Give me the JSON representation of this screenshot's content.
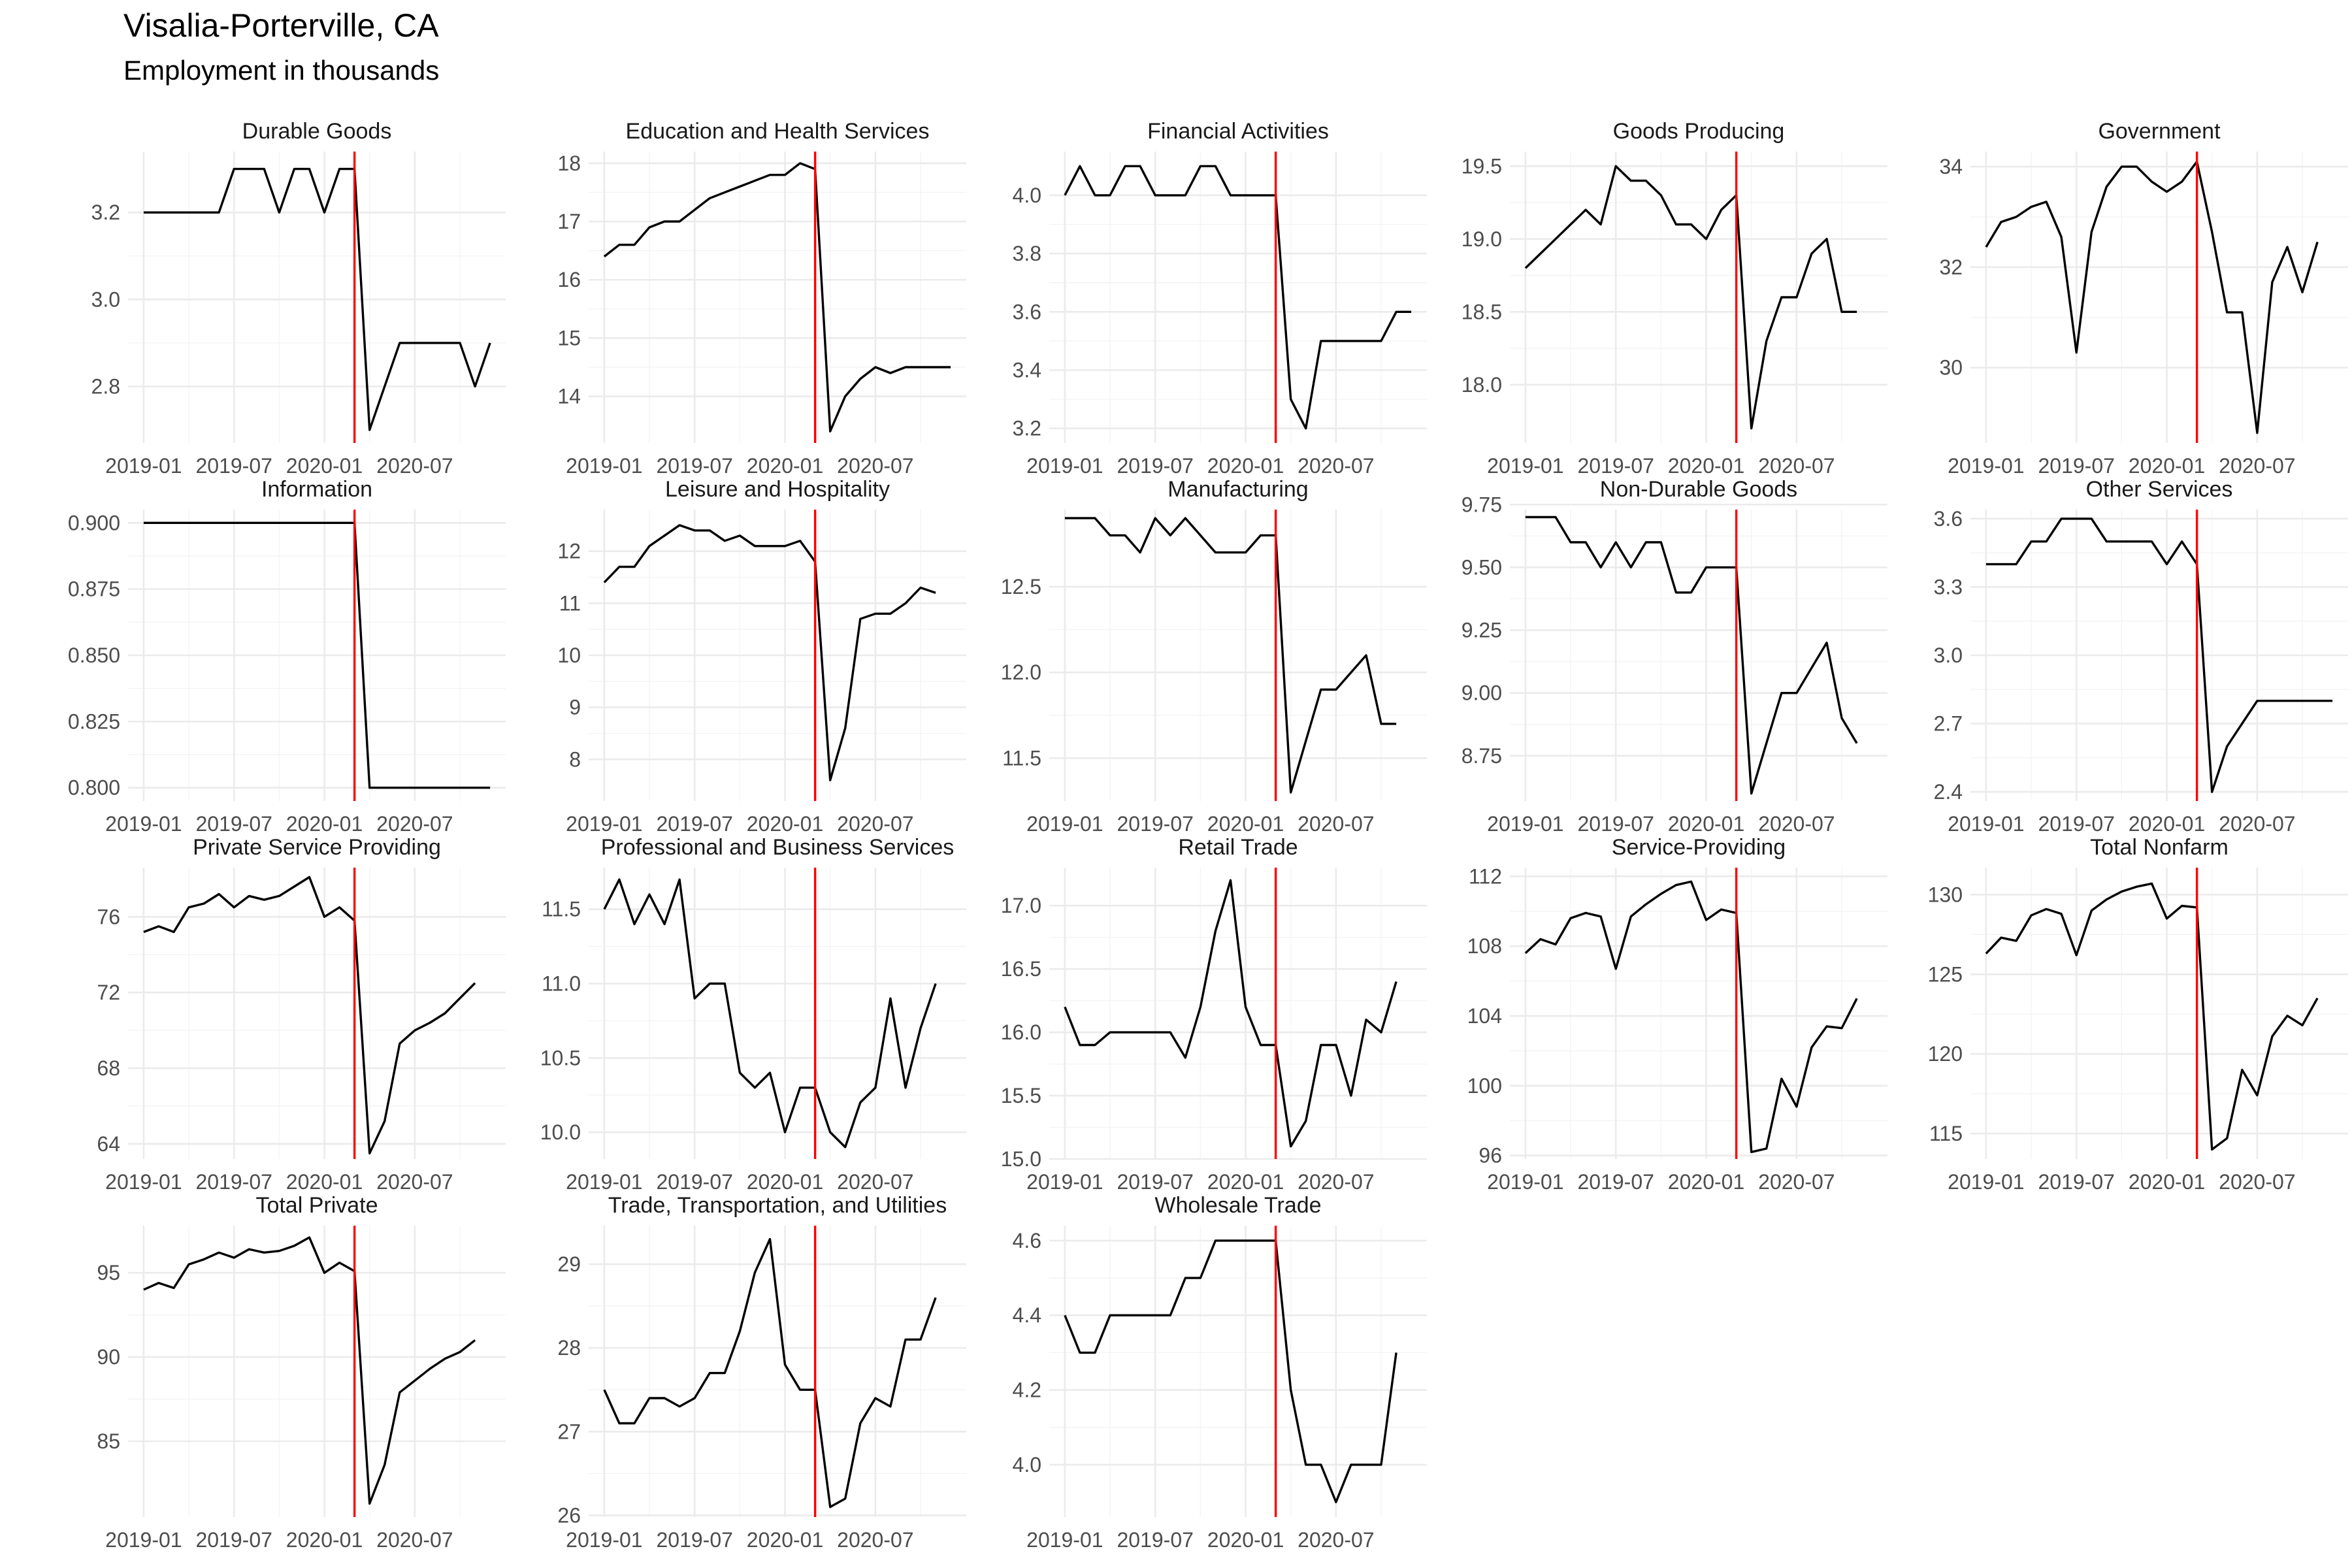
{
  "header": {
    "title": "Visalia-Porterville, CA",
    "subtitle": "Employment in thousands"
  },
  "chart_data": {
    "type": "line",
    "facet": "wrap",
    "facet_columns": 5,
    "x": [
      "2019-01",
      "2019-02",
      "2019-03",
      "2019-04",
      "2019-05",
      "2019-06",
      "2019-07",
      "2019-08",
      "2019-09",
      "2019-10",
      "2019-11",
      "2019-12",
      "2020-01",
      "2020-02",
      "2020-03",
      "2020-04",
      "2020-05",
      "2020-06",
      "2020-07",
      "2020-08",
      "2020-09",
      "2020-10",
      "2020-11",
      "2020-12"
    ],
    "x_tick_labels": [
      "2019-01",
      "2019-07",
      "2020-01",
      "2020-07"
    ],
    "vline": {
      "x": "2020-03",
      "color": "#ff0000"
    },
    "line_color": "#000000",
    "grid": true,
    "panels": [
      {
        "title": "Durable Goods",
        "ylim": [
          2.67,
          3.34
        ],
        "yticks": [
          "2.8",
          "3.0",
          "3.2"
        ],
        "values": [
          3.2,
          3.2,
          3.2,
          3.2,
          3.2,
          3.2,
          3.3,
          3.3,
          3.3,
          3.2,
          3.3,
          3.3,
          3.2,
          3.3,
          3.3,
          2.7,
          2.8,
          2.9,
          2.9,
          2.9,
          2.9,
          2.9,
          2.8,
          2.9
        ]
      },
      {
        "title": "Education and Health Services",
        "ylim": [
          13.2,
          18.2
        ],
        "yticks": [
          "14",
          "15",
          "16",
          "17",
          "18"
        ],
        "values": [
          16.4,
          16.6,
          16.6,
          16.9,
          17.0,
          17.0,
          17.2,
          17.4,
          17.5,
          17.6,
          17.7,
          17.8,
          17.8,
          18.0,
          17.9,
          13.4,
          14.0,
          14.3,
          14.5,
          14.4,
          14.5,
          14.5,
          14.5,
          14.5
        ]
      },
      {
        "title": "Financial Activities",
        "ylim": [
          3.15,
          4.15
        ],
        "yticks": [
          "3.2",
          "3.4",
          "3.6",
          "3.8",
          "4.0"
        ],
        "values": [
          4.0,
          4.1,
          4.0,
          4.0,
          4.1,
          4.1,
          4.0,
          4.0,
          4.0,
          4.1,
          4.1,
          4.0,
          4.0,
          4.0,
          4.0,
          3.3,
          3.2,
          3.5,
          3.5,
          3.5,
          3.5,
          3.5,
          3.6,
          3.6
        ]
      },
      {
        "title": "Goods Producing",
        "ylim": [
          17.6,
          19.6
        ],
        "yticks": [
          "18.0",
          "18.5",
          "19.0",
          "19.5"
        ],
        "values": [
          18.8,
          18.9,
          19.0,
          19.1,
          19.2,
          19.1,
          19.5,
          19.4,
          19.4,
          19.3,
          19.1,
          19.1,
          19.0,
          19.2,
          19.3,
          17.7,
          18.3,
          18.6,
          18.6,
          18.9,
          19.0,
          18.5,
          18.5
        ]
      },
      {
        "title": "Government",
        "ylim": [
          28.5,
          34.3
        ],
        "yticks": [
          "30",
          "32",
          "34"
        ],
        "values": [
          32.4,
          32.9,
          33.0,
          33.2,
          33.3,
          32.6,
          30.3,
          32.7,
          33.6,
          34.0,
          34.0,
          33.7,
          33.5,
          33.7,
          34.1,
          32.7,
          31.1,
          31.1,
          28.7,
          31.7,
          32.4,
          31.5,
          32.5
        ]
      },
      {
        "title": "Information",
        "ylim": [
          0.795,
          0.905
        ],
        "yticks": [
          "0.800",
          "0.825",
          "0.850",
          "0.875",
          "0.900"
        ],
        "values": [
          0.9,
          0.9,
          0.9,
          0.9,
          0.9,
          0.9,
          0.9,
          0.9,
          0.9,
          0.9,
          0.9,
          0.9,
          0.9,
          0.9,
          0.9,
          0.8,
          0.8,
          0.8,
          0.8,
          0.8,
          0.8,
          0.8,
          0.8,
          0.8
        ]
      },
      {
        "title": "Leisure and Hospitality",
        "ylim": [
          7.2,
          12.8
        ],
        "yticks": [
          "8",
          "9",
          "10",
          "11",
          "12"
        ],
        "values": [
          11.4,
          11.7,
          11.7,
          12.1,
          12.3,
          12.5,
          12.4,
          12.4,
          12.2,
          12.3,
          12.1,
          12.1,
          12.1,
          12.2,
          11.8,
          7.6,
          8.6,
          10.7,
          10.8,
          10.8,
          11.0,
          11.3,
          11.2
        ]
      },
      {
        "title": "Manufacturing",
        "ylim": [
          11.25,
          12.95
        ],
        "yticks": [
          "11.5",
          "12.0",
          "12.5"
        ],
        "values": [
          12.9,
          12.9,
          12.9,
          12.8,
          12.8,
          12.7,
          12.9,
          12.8,
          12.9,
          12.8,
          12.7,
          12.7,
          12.7,
          12.8,
          12.8,
          11.3,
          11.6,
          11.9,
          11.9,
          12.0,
          12.1,
          11.7,
          11.7
        ]
      },
      {
        "title": "Non-Durable Goods",
        "ylim": [
          8.57,
          9.73
        ],
        "yticks": [
          "8.75",
          "9.00",
          "9.25",
          "9.50",
          "9.75"
        ],
        "values": [
          9.7,
          9.7,
          9.7,
          9.6,
          9.6,
          9.5,
          9.6,
          9.5,
          9.6,
          9.6,
          9.4,
          9.4,
          9.5,
          9.5,
          9.5,
          8.6,
          8.8,
          9.0,
          9.0,
          9.1,
          9.2,
          8.9,
          8.8
        ]
      },
      {
        "title": "Other Services",
        "ylim": [
          2.36,
          3.64
        ],
        "yticks": [
          "2.4",
          "2.7",
          "3.0",
          "3.3",
          "3.6"
        ],
        "values": [
          3.4,
          3.4,
          3.4,
          3.5,
          3.5,
          3.6,
          3.6,
          3.6,
          3.5,
          3.5,
          3.5,
          3.5,
          3.4,
          3.5,
          3.4,
          2.4,
          2.6,
          2.7,
          2.8,
          2.8,
          2.8,
          2.8,
          2.8,
          2.8
        ]
      },
      {
        "title": "Private Service Providing",
        "ylim": [
          63.2,
          78.6
        ],
        "yticks": [
          "64",
          "68",
          "72",
          "76"
        ],
        "values": [
          75.2,
          75.5,
          75.2,
          76.5,
          76.7,
          77.2,
          76.5,
          77.1,
          76.9,
          77.1,
          77.6,
          78.1,
          76.0,
          76.5,
          75.8,
          63.5,
          65.2,
          69.3,
          70.0,
          70.4,
          70.9,
          71.7,
          72.5
        ]
      },
      {
        "title": "Professional and Business Services",
        "ylim": [
          9.82,
          11.78
        ],
        "yticks": [
          "10.0",
          "10.5",
          "11.0",
          "11.5"
        ],
        "values": [
          11.5,
          11.7,
          11.4,
          11.6,
          11.4,
          11.7,
          10.9,
          11.0,
          11.0,
          10.4,
          10.3,
          10.4,
          10.0,
          10.3,
          10.3,
          10.0,
          9.9,
          10.2,
          10.3,
          10.9,
          10.3,
          10.7,
          11.0
        ]
      },
      {
        "title": "Retail Trade",
        "ylim": [
          15.0,
          17.3
        ],
        "yticks": [
          "15.0",
          "15.5",
          "16.0",
          "16.5",
          "17.0"
        ],
        "values": [
          16.2,
          15.9,
          15.9,
          16.0,
          16.0,
          16.0,
          16.0,
          16.0,
          15.8,
          16.2,
          16.8,
          17.2,
          16.2,
          15.9,
          15.9,
          15.1,
          15.3,
          15.9,
          15.9,
          15.5,
          16.1,
          16.0,
          16.4
        ]
      },
      {
        "title": "Service-Providing",
        "ylim": [
          95.8,
          112.5
        ],
        "yticks": [
          "96",
          "100",
          "104",
          "108",
          "112"
        ],
        "values": [
          107.6,
          108.4,
          108.1,
          109.6,
          109.9,
          109.7,
          106.7,
          109.7,
          110.4,
          111.0,
          111.5,
          111.7,
          109.5,
          110.1,
          109.9,
          96.2,
          96.4,
          100.4,
          98.8,
          102.2,
          103.4,
          103.3,
          105.0
        ]
      },
      {
        "title": "Total Nonfarm",
        "ylim": [
          113.4,
          131.7
        ],
        "yticks": [
          "115",
          "120",
          "125",
          "130"
        ],
        "values": [
          126.3,
          127.3,
          127.1,
          128.7,
          129.1,
          128.8,
          126.2,
          129.0,
          129.7,
          130.2,
          130.5,
          130.7,
          128.5,
          129.3,
          129.2,
          114.0,
          114.7,
          119.0,
          117.4,
          121.1,
          122.4,
          121.8,
          123.5
        ]
      },
      {
        "title": "Total Private",
        "ylim": [
          80.5,
          97.8
        ],
        "yticks": [
          "85",
          "90",
          "95"
        ],
        "values": [
          94.0,
          94.4,
          94.1,
          95.5,
          95.8,
          96.2,
          95.9,
          96.4,
          96.2,
          96.3,
          96.6,
          97.1,
          95.0,
          95.6,
          95.1,
          81.3,
          83.6,
          87.9,
          88.6,
          89.3,
          89.9,
          90.3,
          91.0
        ]
      },
      {
        "title": "Trade, Transportation, and Utilities",
        "ylim": [
          25.98,
          29.46
        ],
        "yticks": [
          "26",
          "27",
          "28",
          "29"
        ],
        "values": [
          27.5,
          27.1,
          27.1,
          27.4,
          27.4,
          27.3,
          27.4,
          27.7,
          27.7,
          28.2,
          28.9,
          29.3,
          27.8,
          27.5,
          27.5,
          26.1,
          26.2,
          27.1,
          27.4,
          27.3,
          28.1,
          28.1,
          28.6
        ]
      },
      {
        "title": "Wholesale Trade",
        "ylim": [
          3.86,
          4.64
        ],
        "yticks": [
          "4.0",
          "4.2",
          "4.4",
          "4.6"
        ],
        "values": [
          4.4,
          4.3,
          4.3,
          4.4,
          4.4,
          4.4,
          4.4,
          4.4,
          4.5,
          4.5,
          4.6,
          4.6,
          4.6,
          4.6,
          4.6,
          4.2,
          4.0,
          4.0,
          3.9,
          4.0,
          4.0,
          4.0,
          4.3
        ]
      }
    ]
  }
}
